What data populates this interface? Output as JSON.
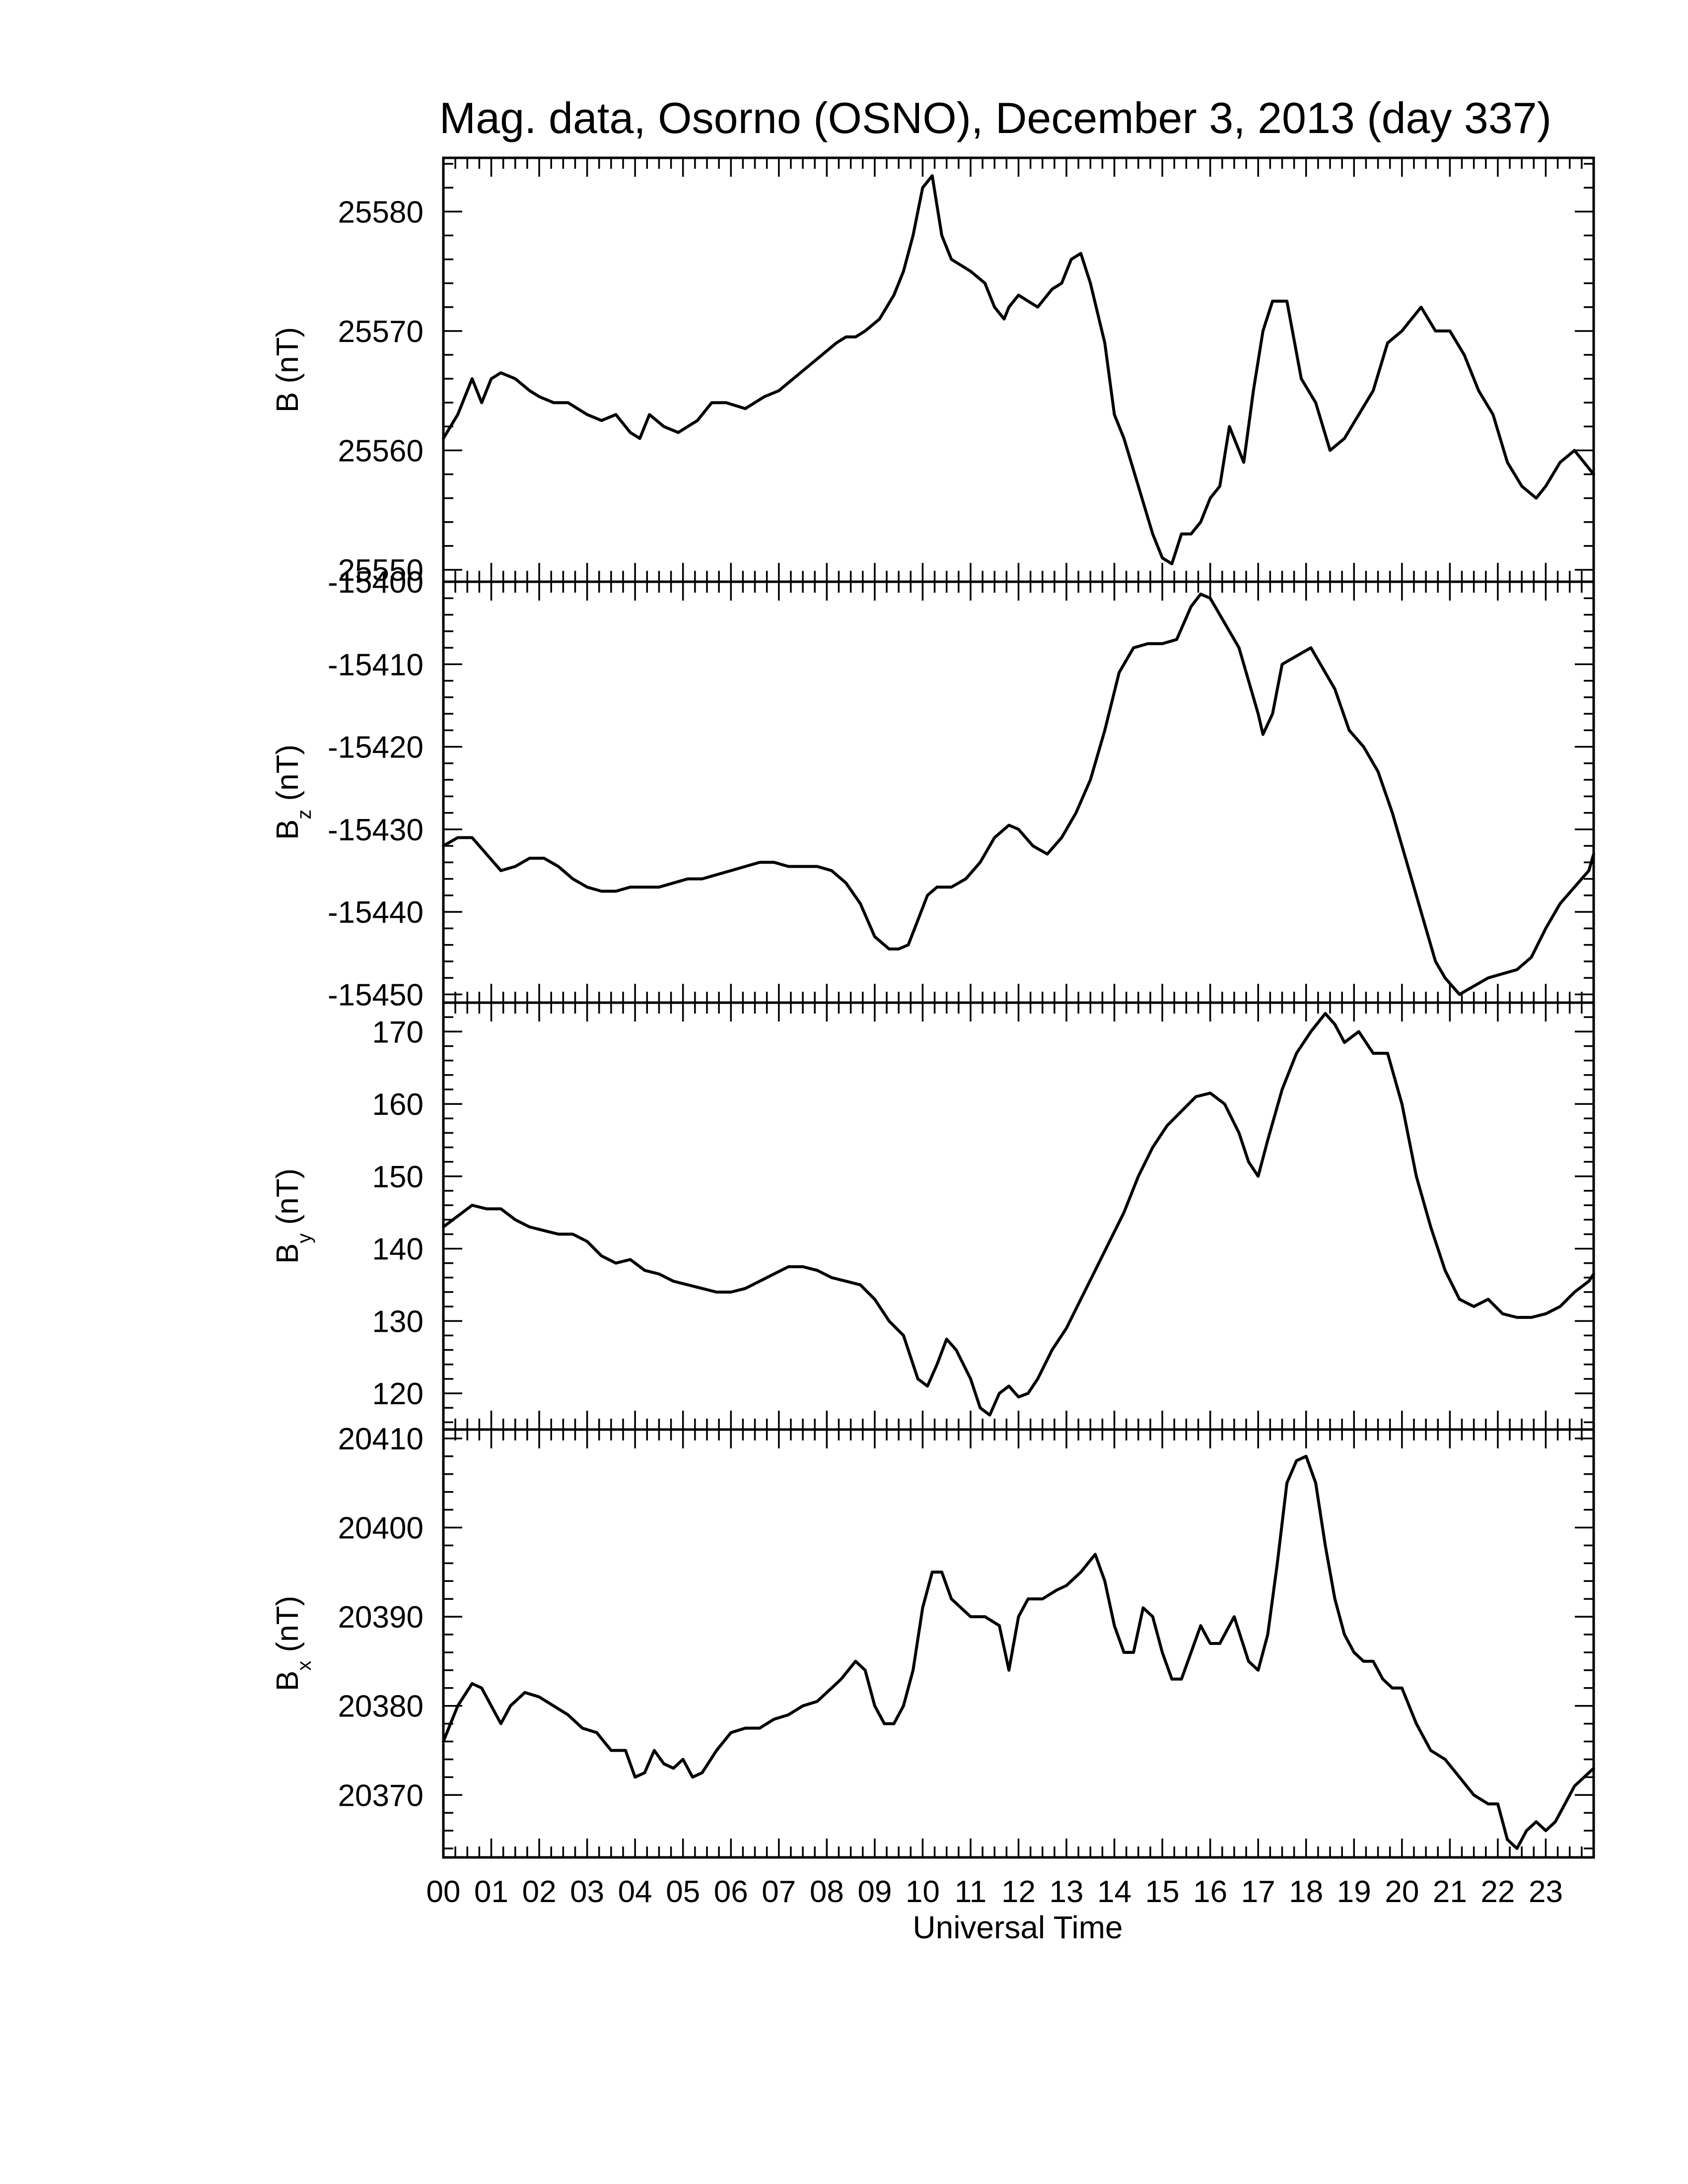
{
  "figure": {
    "title": "Mag. data, Osorno (OSNO), December 3, 2013 (day 337)",
    "xlabel": "Universal Time"
  },
  "chart_data": [
    {
      "type": "line",
      "panel": "B",
      "ylabel_main": "B",
      "ylabel_sub": "",
      "ylabel_unit": "(nT)",
      "yticks": [
        25550,
        25560,
        25570,
        25580
      ],
      "ylim": [
        25549,
        25584.5
      ],
      "xlim": [
        0,
        24
      ],
      "x": [
        0,
        0.3,
        0.6,
        0.8,
        1.0,
        1.2,
        1.5,
        1.8,
        2.0,
        2.3,
        2.6,
        3.0,
        3.3,
        3.6,
        3.9,
        4.1,
        4.3,
        4.6,
        4.9,
        5.3,
        5.6,
        5.9,
        6.3,
        6.7,
        7.0,
        7.3,
        7.6,
        7.9,
        8.2,
        8.4,
        8.6,
        8.8,
        9.1,
        9.4,
        9.6,
        9.8,
        10.0,
        10.2,
        10.4,
        10.6,
        10.8,
        11.0,
        11.3,
        11.5,
        11.7,
        11.8,
        12.0,
        12.2,
        12.4,
        12.7,
        12.9,
        13.1,
        13.3,
        13.5,
        13.8,
        14.0,
        14.2,
        14.5,
        14.8,
        15.0,
        15.2,
        15.4,
        15.6,
        15.8,
        16.0,
        16.2,
        16.4,
        16.7,
        16.9,
        17.1,
        17.3,
        17.6,
        17.9,
        18.2,
        18.5,
        18.8,
        19.1,
        19.4,
        19.7,
        20.0,
        20.2,
        20.4,
        20.7,
        21.0,
        21.3,
        21.6,
        21.9,
        22.2,
        22.5,
        22.8,
        23.0,
        23.3,
        23.6,
        23.9,
        24.0
      ],
      "values": [
        25561,
        25563,
        25566,
        25564,
        25566,
        25566.5,
        25566,
        25565,
        25564.5,
        25564,
        25564,
        25563,
        25562.5,
        25563,
        25561.5,
        25561,
        25563,
        25562,
        25561.5,
        25562.5,
        25564,
        25564,
        25563.5,
        25564.5,
        25565,
        25566,
        25567,
        25568,
        25569,
        25569.5,
        25569.5,
        25570,
        25571,
        25573,
        25575,
        25578,
        25582,
        25583,
        25578,
        25576,
        25575.5,
        25575,
        25574,
        25572,
        25571,
        25572,
        25573,
        25572.5,
        25572,
        25573.5,
        25574,
        25576,
        25576.5,
        25574,
        25569,
        25563,
        25561,
        25557,
        25553,
        25551,
        25550.5,
        25553,
        25553,
        25554,
        25556,
        25557,
        25562,
        25559,
        25565,
        25570,
        25572.5,
        25572.5,
        25566,
        25564,
        25560,
        25561,
        25563,
        25565,
        25569,
        25570,
        25571,
        25572,
        25570,
        25570,
        25568,
        25565,
        25563,
        25559,
        25557,
        25556,
        25557,
        25559,
        25560,
        25558.5,
        25558
      ]
    },
    {
      "type": "line",
      "panel": "Bz",
      "ylabel_main": "B",
      "ylabel_sub": "z",
      "ylabel_unit": "(nT)",
      "yticks": [
        -15450,
        -15440,
        -15430,
        -15420,
        -15410,
        -15400
      ],
      "ylim": [
        -15451,
        -15400
      ],
      "xlim": [
        0,
        24
      ],
      "x": [
        0,
        0.3,
        0.6,
        0.9,
        1.2,
        1.5,
        1.8,
        2.1,
        2.4,
        2.7,
        3.0,
        3.3,
        3.6,
        3.9,
        4.2,
        4.5,
        4.8,
        5.1,
        5.4,
        5.7,
        6.0,
        6.3,
        6.6,
        6.9,
        7.2,
        7.5,
        7.8,
        8.1,
        8.4,
        8.7,
        9.0,
        9.3,
        9.5,
        9.7,
        9.9,
        10.1,
        10.3,
        10.6,
        10.9,
        11.2,
        11.5,
        11.8,
        12.0,
        12.3,
        12.6,
        12.9,
        13.2,
        13.5,
        13.8,
        14.1,
        14.4,
        14.7,
        15.0,
        15.3,
        15.6,
        15.8,
        16.0,
        16.2,
        16.4,
        16.6,
        16.8,
        17.0,
        17.1,
        17.3,
        17.5,
        17.8,
        18.1,
        18.4,
        18.6,
        18.9,
        19.2,
        19.5,
        19.8,
        20.1,
        20.4,
        20.7,
        20.9,
        21.2,
        21.5,
        21.8,
        22.1,
        22.4,
        22.7,
        23.0,
        23.3,
        23.6,
        23.9,
        24.0
      ],
      "values": [
        -15432,
        -15431,
        -15431,
        -15433,
        -15435,
        -15434.5,
        -15433.5,
        -15433.5,
        -15434.5,
        -15436,
        -15437,
        -15437.5,
        -15437.5,
        -15437,
        -15437,
        -15437,
        -15436.5,
        -15436,
        -15436,
        -15435.5,
        -15435,
        -15434.5,
        -15434,
        -15434,
        -15434.5,
        -15434.5,
        -15434.5,
        -15435,
        -15436.5,
        -15439,
        -15443,
        -15444.5,
        -15444.5,
        -15444,
        -15441,
        -15438,
        -15437,
        -15437,
        -15436,
        -15434,
        -15431,
        -15429.5,
        -15430,
        -15432,
        -15433,
        -15431,
        -15428,
        -15424,
        -15418,
        -15411,
        -15408,
        -15407.5,
        -15407.5,
        -15407,
        -15403,
        -15401.5,
        -15402,
        -15404,
        -15406,
        -15408,
        -15412,
        -15416,
        -15418.5,
        -15416,
        -15410,
        -15409,
        -15408,
        -15411,
        -15413,
        -15418,
        -15420,
        -15423,
        -15428,
        -15434,
        -15440,
        -15446,
        -15448,
        -15450,
        -15449,
        -15448,
        -15447.5,
        -15447,
        -15445.5,
        -15442,
        -15439,
        -15437,
        -15435,
        -15433
      ]
    },
    {
      "type": "line",
      "panel": "By",
      "ylabel_main": "B",
      "ylabel_sub": "y",
      "ylabel_unit": "(nT)",
      "yticks": [
        120,
        130,
        140,
        150,
        160,
        170
      ],
      "ylim": [
        115,
        174
      ],
      "xlim": [
        0,
        24
      ],
      "x": [
        0,
        0.3,
        0.6,
        0.9,
        1.2,
        1.5,
        1.8,
        2.1,
        2.4,
        2.7,
        3.0,
        3.3,
        3.6,
        3.9,
        4.2,
        4.5,
        4.8,
        5.1,
        5.4,
        5.7,
        6.0,
        6.3,
        6.6,
        6.9,
        7.2,
        7.5,
        7.8,
        8.1,
        8.4,
        8.7,
        9.0,
        9.3,
        9.6,
        9.9,
        10.1,
        10.3,
        10.5,
        10.7,
        11.0,
        11.2,
        11.4,
        11.6,
        11.8,
        12.0,
        12.2,
        12.4,
        12.7,
        13.0,
        13.3,
        13.6,
        13.9,
        14.2,
        14.5,
        14.8,
        15.1,
        15.4,
        15.7,
        16.0,
        16.3,
        16.6,
        16.8,
        17.0,
        17.2,
        17.5,
        17.8,
        18.1,
        18.4,
        18.6,
        18.8,
        19.1,
        19.4,
        19.7,
        20.0,
        20.3,
        20.6,
        20.9,
        21.2,
        21.5,
        21.8,
        22.1,
        22.4,
        22.7,
        23.0,
        23.3,
        23.6,
        23.9,
        24.0
      ],
      "values": [
        143,
        144.5,
        146,
        145.5,
        145.5,
        144,
        143,
        142.5,
        142,
        142,
        141,
        139,
        138,
        138.5,
        137,
        136.5,
        135.5,
        135,
        134.5,
        134,
        134,
        134.5,
        135.5,
        136.5,
        137.5,
        137.5,
        137,
        136,
        135.5,
        135,
        133,
        130,
        128,
        122,
        121,
        124,
        127.5,
        126,
        122,
        118,
        117,
        120,
        121,
        119.5,
        120,
        122,
        126,
        129,
        133,
        137,
        141,
        145,
        150,
        154,
        157,
        159,
        161,
        161.5,
        160,
        156,
        152,
        150,
        155,
        162,
        167,
        170,
        172.5,
        171,
        168.5,
        170,
        167,
        167,
        160,
        150,
        143,
        137,
        133,
        132,
        133,
        131,
        130.5,
        130.5,
        131,
        132,
        134,
        135.5,
        136.5
      ]
    },
    {
      "type": "line",
      "panel": "Bx",
      "ylabel_main": "B",
      "ylabel_sub": "x",
      "ylabel_unit": "(nT)",
      "yticks": [
        20370,
        20380,
        20390,
        20400,
        20410
      ],
      "ylim": [
        20363,
        20411
      ],
      "xlim": [
        0,
        24
      ],
      "x": [
        0,
        0.3,
        0.6,
        0.8,
        1.0,
        1.2,
        1.4,
        1.7,
        2.0,
        2.3,
        2.6,
        2.9,
        3.2,
        3.5,
        3.8,
        4.0,
        4.2,
        4.4,
        4.6,
        4.8,
        5.0,
        5.2,
        5.4,
        5.7,
        6.0,
        6.3,
        6.6,
        6.9,
        7.2,
        7.5,
        7.8,
        8.1,
        8.3,
        8.6,
        8.8,
        9.0,
        9.2,
        9.4,
        9.6,
        9.8,
        10.0,
        10.2,
        10.4,
        10.6,
        10.8,
        11.0,
        11.3,
        11.6,
        11.8,
        12.0,
        12.2,
        12.5,
        12.8,
        13.0,
        13.3,
        13.6,
        13.8,
        14.0,
        14.2,
        14.4,
        14.6,
        14.8,
        15.0,
        15.2,
        15.4,
        15.6,
        15.8,
        16.0,
        16.2,
        16.5,
        16.8,
        17.0,
        17.2,
        17.4,
        17.6,
        17.8,
        18.0,
        18.2,
        18.4,
        18.6,
        18.8,
        19.0,
        19.2,
        19.4,
        19.6,
        19.8,
        20.0,
        20.3,
        20.6,
        20.9,
        21.2,
        21.5,
        21.8,
        22.0,
        22.2,
        22.4,
        22.6,
        22.8,
        23.0,
        23.2,
        23.4,
        23.6,
        23.8,
        24.0
      ],
      "values": [
        20376,
        20380,
        20382.5,
        20382,
        20380,
        20378,
        20380,
        20381.5,
        20381,
        20380,
        20379,
        20377.5,
        20377,
        20375,
        20375,
        20372,
        20372.5,
        20375,
        20373.5,
        20373,
        20374,
        20372,
        20372.5,
        20375,
        20377,
        20377.5,
        20377.5,
        20378.5,
        20379,
        20380,
        20380.5,
        20382,
        20383,
        20385,
        20384,
        20380,
        20378,
        20378,
        20380,
        20384,
        20391,
        20395,
        20395,
        20392,
        20391,
        20390,
        20390,
        20389,
        20384,
        20390,
        20392,
        20392,
        20393,
        20393.5,
        20395,
        20397,
        20394,
        20389,
        20386,
        20386,
        20391,
        20390,
        20386,
        20383,
        20383,
        20386,
        20389,
        20387,
        20387,
        20390,
        20385,
        20384,
        20388,
        20396,
        20405,
        20407.5,
        20408,
        20405,
        20398,
        20392,
        20388,
        20386,
        20385,
        20385,
        20383,
        20382,
        20382,
        20378,
        20375,
        20374,
        20372,
        20370,
        20369,
        20369,
        20365,
        20364,
        20366,
        20367,
        20366,
        20367,
        20369,
        20371,
        20372,
        20373
      ]
    }
  ]
}
